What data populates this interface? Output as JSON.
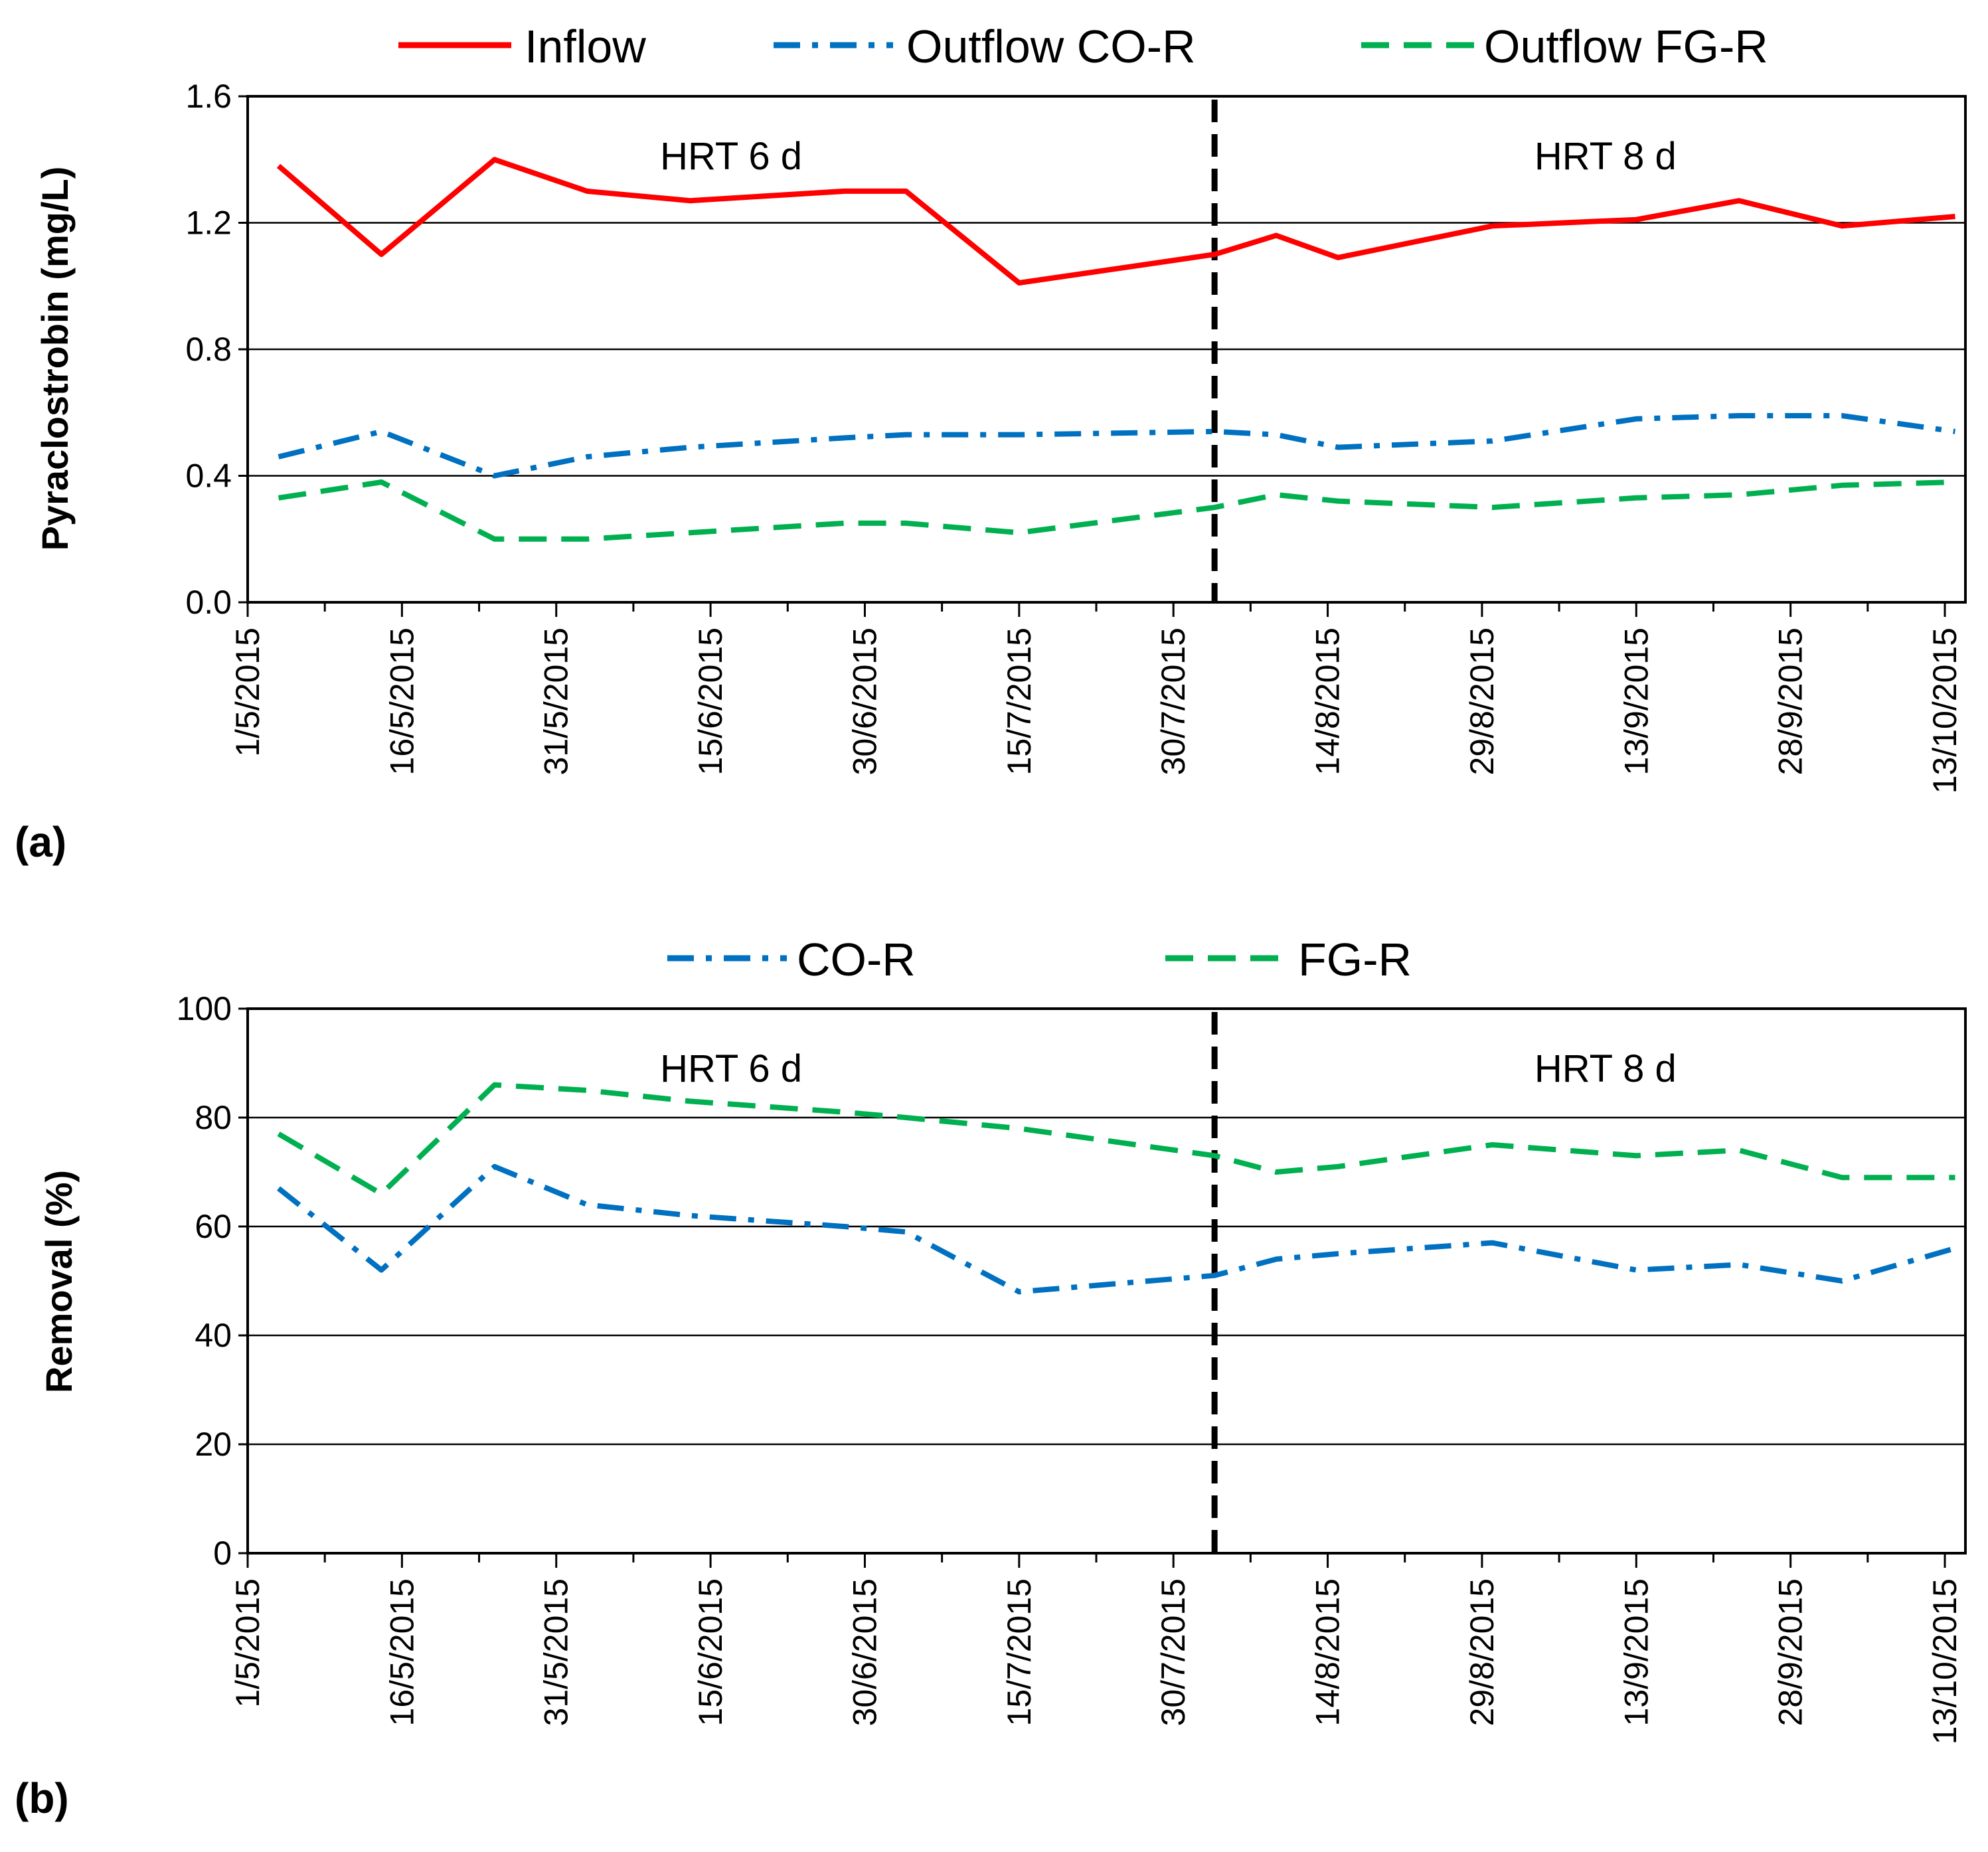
{
  "chart_data": [
    {
      "type": "line",
      "panel_label": "(a)",
      "ylabel": "Pyraclostrobin  (mg/L)",
      "xlabel": "",
      "ylim": [
        0,
        1.6
      ],
      "yticks": [
        "0.0",
        "0.4",
        "0.8",
        "1.2",
        "1.6"
      ],
      "ytick_values": [
        0,
        0.4,
        0.8,
        1.2,
        1.6
      ],
      "x_range_days": [
        0,
        167
      ],
      "xtick_labels": [
        "1/5/2015",
        "16/5/2015",
        "31/5/2015",
        "15/6/2015",
        "30/6/2015",
        "15/7/2015",
        "30/7/2015",
        "14/8/2015",
        "29/8/2015",
        "13/9/2015",
        "28/9/2015",
        "13/10/2015"
      ],
      "xtick_days": [
        0,
        15,
        30,
        45,
        60,
        75,
        90,
        105,
        120,
        135,
        150,
        165
      ],
      "grid": "horizontal",
      "legend_position": "top",
      "hrt_divider_day": 94,
      "annotations": [
        "HRT 6 d",
        "HRT 8 d"
      ],
      "series": [
        {
          "name": "Inflow",
          "color": "#ff0000",
          "style": "solid",
          "x": [
            3,
            13,
            24,
            33,
            43,
            58,
            64,
            75,
            94,
            100,
            106,
            121,
            135,
            145,
            155,
            166
          ],
          "values": [
            1.38,
            1.1,
            1.4,
            1.3,
            1.27,
            1.3,
            1.3,
            1.01,
            1.1,
            1.16,
            1.09,
            1.19,
            1.21,
            1.27,
            1.19,
            1.22
          ]
        },
        {
          "name": "Outflow CO-R",
          "color": "#0070c0",
          "style": "dashdot",
          "x": [
            3,
            13,
            24,
            33,
            43,
            58,
            64,
            75,
            94,
            100,
            106,
            121,
            135,
            145,
            155,
            166
          ],
          "values": [
            0.46,
            0.54,
            0.4,
            0.46,
            0.49,
            0.52,
            0.53,
            0.53,
            0.54,
            0.53,
            0.49,
            0.51,
            0.58,
            0.59,
            0.59,
            0.54
          ]
        },
        {
          "name": "Outflow FG-R",
          "color": "#00b050",
          "style": "dashed",
          "x": [
            3,
            13,
            24,
            33,
            43,
            58,
            64,
            75,
            94,
            100,
            106,
            121,
            135,
            145,
            155,
            166
          ],
          "values": [
            0.33,
            0.38,
            0.2,
            0.2,
            0.22,
            0.25,
            0.25,
            0.22,
            0.3,
            0.34,
            0.32,
            0.3,
            0.33,
            0.34,
            0.37,
            0.38
          ]
        }
      ]
    },
    {
      "type": "line",
      "panel_label": "(b)",
      "ylabel": "Removal (%)",
      "xlabel": "",
      "ylim": [
        0,
        100
      ],
      "yticks": [
        "0",
        "20",
        "40",
        "60",
        "80",
        "100"
      ],
      "ytick_values": [
        0,
        20,
        40,
        60,
        80,
        100
      ],
      "x_range_days": [
        0,
        167
      ],
      "xtick_labels": [
        "1/5/2015",
        "16/5/2015",
        "31/5/2015",
        "15/6/2015",
        "30/6/2015",
        "15/7/2015",
        "30/7/2015",
        "14/8/2015",
        "29/8/2015",
        "13/9/2015",
        "28/9/2015",
        "13/10/2015"
      ],
      "xtick_days": [
        0,
        15,
        30,
        45,
        60,
        75,
        90,
        105,
        120,
        135,
        150,
        165
      ],
      "grid": "horizontal",
      "legend_position": "top",
      "hrt_divider_day": 94,
      "annotations": [
        "HRT 6 d",
        "HRT 8 d"
      ],
      "series": [
        {
          "name": "CO-R",
          "color": "#0070c0",
          "style": "dashdot",
          "x": [
            3,
            13,
            24,
            33,
            43,
            58,
            64,
            75,
            94,
            100,
            106,
            121,
            135,
            145,
            155,
            166
          ],
          "values": [
            67,
            52,
            71,
            64,
            62,
            60,
            59,
            48,
            51,
            54,
            55,
            57,
            52,
            53,
            50,
            56
          ]
        },
        {
          "name": "FG-R",
          "color": "#00b050",
          "style": "dashed",
          "x": [
            3,
            13,
            24,
            33,
            43,
            58,
            64,
            75,
            94,
            100,
            106,
            121,
            135,
            145,
            155,
            166
          ],
          "values": [
            77,
            66,
            86,
            85,
            83,
            81,
            80,
            78,
            73,
            70,
            71,
            75,
            73,
            74,
            69,
            69
          ]
        }
      ]
    }
  ]
}
